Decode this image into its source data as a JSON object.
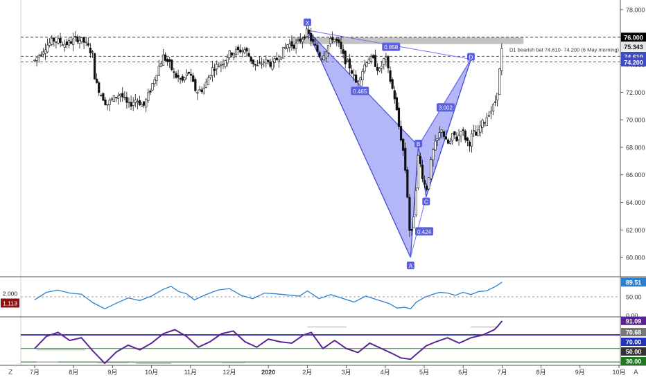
{
  "chart_data": [
    {
      "type": "candlestick",
      "panel": "price",
      "x_ticks": [
        "7月",
        "8月",
        "9月",
        "10月",
        "11月",
        "12月",
        "2020",
        "2月",
        "3月",
        "4月",
        "5月",
        "6月",
        "7月",
        "8月",
        "9月",
        "10月"
      ],
      "y_ticks": [
        "78.000",
        "76.000",
        "74.000",
        "72.000",
        "70.000",
        "68.000",
        "66.000",
        "64.000",
        "62.000",
        "60.000"
      ],
      "ylim": [
        58.7,
        78.7
      ],
      "price_tags": [
        {
          "value": 76.0,
          "label": "76.000",
          "bg": "#000000",
          "fg": "#ffffff"
        },
        {
          "value": 75.343,
          "label": "75.343",
          "bg": "#e6e6e6",
          "fg": "#222222"
        },
        {
          "value": 74.61,
          "label": "74.610",
          "bg": "#3f4cc4",
          "fg": "#ffffff"
        },
        {
          "value": 74.2,
          "label": "74.200",
          "bg": "#3f4cc4",
          "fg": "#ffffff"
        }
      ],
      "horizontal_lines": [
        {
          "value": 76.0,
          "color": "#333333"
        },
        {
          "value": 74.61,
          "color": "#3f4cc4"
        },
        {
          "value": 74.2,
          "color": "#3f4cc4"
        }
      ],
      "zone": {
        "from": 75.5,
        "to": 76.0,
        "color": "#bdbdbd"
      },
      "zone_label": "D1 bearish bat 74.610- 74.200 (6 May morning)",
      "pattern_points": [
        {
          "label": "X",
          "t": 7.0,
          "value": 76.5
        },
        {
          "label": "A",
          "t": 9.65,
          "value": 60.0
        },
        {
          "label": "B",
          "t": 9.85,
          "value": 68.1
        },
        {
          "label": "C",
          "t": 10.05,
          "value": 64.4
        },
        {
          "label": "D",
          "t": 11.2,
          "value": 74.4
        }
      ],
      "ratios": [
        {
          "label": "0.465",
          "t": 8.35,
          "value": 72.1
        },
        {
          "label": "0.424",
          "t": 10.0,
          "value": 61.9
        },
        {
          "label": "3.002",
          "t": 10.55,
          "value": 70.9
        },
        {
          "label": "0.858",
          "t": 9.15,
          "value": 75.3
        }
      ],
      "path_points": [
        [
          0.0,
          74.3
        ],
        [
          0.3,
          75.4
        ],
        [
          0.5,
          75.8
        ],
        [
          0.8,
          75.5
        ],
        [
          1.1,
          75.9
        ],
        [
          1.3,
          75.6
        ],
        [
          1.5,
          74.7
        ],
        [
          1.55,
          72.8
        ],
        [
          1.7,
          71.9
        ],
        [
          1.85,
          71.1
        ],
        [
          2.0,
          71.5
        ],
        [
          2.2,
          71.9
        ],
        [
          2.4,
          71.0
        ],
        [
          2.6,
          71.5
        ],
        [
          2.8,
          71.0
        ],
        [
          2.95,
          72.0
        ],
        [
          3.15,
          73.6
        ],
        [
          3.3,
          74.6
        ],
        [
          3.45,
          74.1
        ],
        [
          3.6,
          73.2
        ],
        [
          3.8,
          72.8
        ],
        [
          3.95,
          73.5
        ],
        [
          4.15,
          72.0
        ],
        [
          4.35,
          72.3
        ],
        [
          4.55,
          73.7
        ],
        [
          4.8,
          74.1
        ],
        [
          5.0,
          74.8
        ],
        [
          5.2,
          75.0
        ],
        [
          5.4,
          75.1
        ],
        [
          5.55,
          74.4
        ],
        [
          5.7,
          73.8
        ],
        [
          5.9,
          74.3
        ],
        [
          6.1,
          74.0
        ],
        [
          6.3,
          74.7
        ],
        [
          6.5,
          75.5
        ],
        [
          6.7,
          75.4
        ],
        [
          6.85,
          75.9
        ],
        [
          7.0,
          76.4
        ],
        [
          7.1,
          75.8
        ],
        [
          7.2,
          75.3
        ],
        [
          7.35,
          74.5
        ],
        [
          7.5,
          75.2
        ],
        [
          7.65,
          76.0
        ],
        [
          7.8,
          75.5
        ],
        [
          7.95,
          74.4
        ],
        [
          8.1,
          73.8
        ],
        [
          8.25,
          72.7
        ],
        [
          8.4,
          73.5
        ],
        [
          8.55,
          74.5
        ],
        [
          8.7,
          74.3
        ],
        [
          8.85,
          73.5
        ],
        [
          9.0,
          74.6
        ],
        [
          9.1,
          73.2
        ],
        [
          9.25,
          71.5
        ],
        [
          9.35,
          69.5
        ],
        [
          9.45,
          68.0
        ],
        [
          9.55,
          65.5
        ],
        [
          9.6,
          63.0
        ],
        [
          9.65,
          61.0
        ],
        [
          9.75,
          63.5
        ],
        [
          9.85,
          67.5
        ],
        [
          9.95,
          66.0
        ],
        [
          10.05,
          64.8
        ],
        [
          10.15,
          66.5
        ],
        [
          10.25,
          68.0
        ],
        [
          10.35,
          68.6
        ],
        [
          10.45,
          69.4
        ],
        [
          10.55,
          68.4
        ],
        [
          10.65,
          68.2
        ],
        [
          10.75,
          69.0
        ],
        [
          10.85,
          68.5
        ],
        [
          10.95,
          69.4
        ],
        [
          11.05,
          68.7
        ],
        [
          11.15,
          68.2
        ],
        [
          11.25,
          69.1
        ],
        [
          11.35,
          68.8
        ],
        [
          11.45,
          69.6
        ],
        [
          11.55,
          69.9
        ],
        [
          11.65,
          70.5
        ],
        [
          11.75,
          70.8
        ],
        [
          11.85,
          71.5
        ],
        [
          11.9,
          72.6
        ],
        [
          11.95,
          74.0
        ],
        [
          12.0,
          75.3
        ]
      ]
    },
    {
      "type": "line",
      "panel": "indicator_1",
      "ylim": [
        0,
        100
      ],
      "y_ticks": [
        "50.00",
        "0.00"
      ],
      "reference_line": 50,
      "left_tags": [
        {
          "label": "2.000",
          "bg": "#ffffff",
          "fg": "#222222"
        },
        {
          "label": "1.113",
          "bg": "#8b1111",
          "fg": "#ffffff"
        }
      ],
      "last_value": {
        "label": "89.51",
        "value": 89.51,
        "bg": "#2b7fd0",
        "fg": "#ffffff"
      },
      "color": "#2b7fd0",
      "points": [
        [
          0.0,
          42
        ],
        [
          0.3,
          62
        ],
        [
          0.6,
          68
        ],
        [
          0.9,
          60
        ],
        [
          1.2,
          57
        ],
        [
          1.5,
          34
        ],
        [
          1.8,
          18
        ],
        [
          2.1,
          33
        ],
        [
          2.4,
          47
        ],
        [
          2.7,
          40
        ],
        [
          3.0,
          52
        ],
        [
          3.3,
          70
        ],
        [
          3.5,
          78
        ],
        [
          3.7,
          64
        ],
        [
          3.9,
          58
        ],
        [
          4.1,
          42
        ],
        [
          4.4,
          56
        ],
        [
          4.7,
          68
        ],
        [
          5.0,
          72
        ],
        [
          5.3,
          54
        ],
        [
          5.6,
          45
        ],
        [
          5.9,
          60
        ],
        [
          6.2,
          58
        ],
        [
          6.5,
          55
        ],
        [
          6.8,
          52
        ],
        [
          7.0,
          66
        ],
        [
          7.3,
          45
        ],
        [
          7.6,
          56
        ],
        [
          7.9,
          46
        ],
        [
          8.2,
          36
        ],
        [
          8.5,
          52
        ],
        [
          8.8,
          42
        ],
        [
          9.1,
          32
        ],
        [
          9.3,
          20
        ],
        [
          9.5,
          22
        ],
        [
          9.65,
          18
        ],
        [
          9.8,
          36
        ],
        [
          10.0,
          48
        ],
        [
          10.2,
          56
        ],
        [
          10.4,
          62
        ],
        [
          10.6,
          60
        ],
        [
          10.8,
          54
        ],
        [
          11.0,
          62
        ],
        [
          11.2,
          56
        ],
        [
          11.4,
          64
        ],
        [
          11.6,
          66
        ],
        [
          11.8,
          76
        ],
        [
          11.9,
          82
        ],
        [
          12.0,
          89.5
        ]
      ]
    },
    {
      "type": "line",
      "panel": "indicator_2",
      "ylim": [
        25,
        95
      ],
      "y_ticks": [
        "70.00",
        "50.00",
        "30.00"
      ],
      "levels": [
        {
          "value": 70.68,
          "label": "70.68",
          "color": "#2222aa",
          "bg": "#777777"
        },
        {
          "value": 70.0,
          "label": "70.00",
          "color": "#2222aa",
          "bg": "#2233bb"
        },
        {
          "value": 50.0,
          "label": "50.00",
          "color": "#22aa22",
          "bg": "#333333"
        },
        {
          "value": 30.0,
          "label": "30.00",
          "color": "#1f7a1f",
          "bg": "#1f7a1f"
        }
      ],
      "last_value": {
        "label": "91.09",
        "value": 91.09,
        "bg": "#5a2294",
        "fg": "#ffffff"
      },
      "color": "#5a2294",
      "points": [
        [
          0.0,
          50
        ],
        [
          0.3,
          68
        ],
        [
          0.6,
          74
        ],
        [
          0.9,
          62
        ],
        [
          1.2,
          66
        ],
        [
          1.5,
          46
        ],
        [
          1.8,
          28
        ],
        [
          2.1,
          45
        ],
        [
          2.4,
          55
        ],
        [
          2.7,
          48
        ],
        [
          3.0,
          58
        ],
        [
          3.3,
          72
        ],
        [
          3.6,
          78
        ],
        [
          3.9,
          68
        ],
        [
          4.2,
          52
        ],
        [
          4.5,
          60
        ],
        [
          4.8,
          72
        ],
        [
          5.1,
          76
        ],
        [
          5.4,
          60
        ],
        [
          5.7,
          52
        ],
        [
          6.0,
          64
        ],
        [
          6.3,
          60
        ],
        [
          6.6,
          58
        ],
        [
          6.9,
          70
        ],
        [
          7.1,
          74
        ],
        [
          7.4,
          50
        ],
        [
          7.7,
          62
        ],
        [
          8.0,
          50
        ],
        [
          8.3,
          44
        ],
        [
          8.6,
          58
        ],
        [
          8.9,
          50
        ],
        [
          9.2,
          42
        ],
        [
          9.4,
          36
        ],
        [
          9.65,
          34
        ],
        [
          9.85,
          44
        ],
        [
          10.05,
          54
        ],
        [
          10.3,
          60
        ],
        [
          10.6,
          66
        ],
        [
          10.9,
          58
        ],
        [
          11.2,
          66
        ],
        [
          11.5,
          70
        ],
        [
          11.8,
          78
        ],
        [
          11.9,
          84
        ],
        [
          12.0,
          91
        ]
      ]
    }
  ],
  "ui": {
    "z_label": "Z",
    "a_label": "A"
  }
}
